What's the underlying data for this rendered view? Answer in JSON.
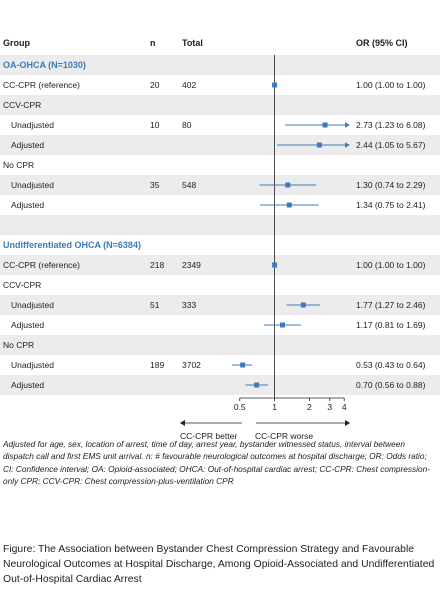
{
  "header": {
    "group": "Group",
    "n": "n",
    "total": "Total",
    "or": "OR (95% CI)"
  },
  "rows": [
    {
      "kind": "section",
      "label": "OA-OHCA (N=1030)",
      "shade": true
    },
    {
      "kind": "data",
      "label": "CC-CPR (reference)",
      "indent": false,
      "n": "20",
      "total": "402",
      "or_text": "1.00 (1.00 to 1.00)",
      "shade": false
    },
    {
      "kind": "group",
      "label": "CCV-CPR",
      "shade": true
    },
    {
      "kind": "data",
      "label": "Unadjusted",
      "indent": true,
      "n": "10",
      "total": "80",
      "or_text": "2.73 (1.23 to 6.08)",
      "shade": false
    },
    {
      "kind": "data",
      "label": "Adjusted",
      "indent": true,
      "n": "",
      "total": "",
      "or_text": "2.44 (1.05 to 5.67)",
      "shade": true
    },
    {
      "kind": "group",
      "label": "No CPR",
      "shade": false
    },
    {
      "kind": "data",
      "label": "Unadjusted",
      "indent": true,
      "n": "35",
      "total": "548",
      "or_text": "1.30 (0.74 to 2.29)",
      "shade": true
    },
    {
      "kind": "data",
      "label": "Adjusted",
      "indent": true,
      "n": "",
      "total": "",
      "or_text": "1.34 (0.75 to 2.41)",
      "shade": false
    },
    {
      "kind": "spacer",
      "label": "",
      "shade": true
    },
    {
      "kind": "section",
      "label": "Undifferentiated OHCA (N=6384)",
      "shade": false
    },
    {
      "kind": "data",
      "label": "CC-CPR (reference)",
      "indent": false,
      "n": "218",
      "total": "2349",
      "or_text": "1.00 (1.00 to 1.00)",
      "shade": true
    },
    {
      "kind": "group",
      "label": "CCV-CPR",
      "shade": false
    },
    {
      "kind": "data",
      "label": "Unadjusted",
      "indent": true,
      "n": "51",
      "total": "333",
      "or_text": "1.77 (1.27 to 2.46)",
      "shade": true
    },
    {
      "kind": "data",
      "label": "Adjusted",
      "indent": true,
      "n": "",
      "total": "",
      "or_text": "1.17 (0.81 to 1.69)",
      "shade": false
    },
    {
      "kind": "group",
      "label": "No CPR",
      "shade": true
    },
    {
      "kind": "data",
      "label": "Unadjusted",
      "indent": true,
      "n": "189",
      "total": "3702",
      "or_text": "0.53 (0.43 to 0.64)",
      "shade": false
    },
    {
      "kind": "data",
      "label": "Adjusted",
      "indent": true,
      "n": "",
      "total": "",
      "or_text": "0.70 (0.56 to 0.88)",
      "shade": true
    }
  ],
  "chart_data": {
    "type": "forest",
    "x_scale": "log",
    "xlim": [
      0.42,
      4.4
    ],
    "xticks": [
      {
        "value": 0.5,
        "label": "0.5"
      },
      {
        "value": 1,
        "label": "1"
      },
      {
        "value": 2,
        "label": "2"
      },
      {
        "value": 3,
        "label": "3"
      },
      {
        "value": 4,
        "label": "4"
      }
    ],
    "reference_line": 1,
    "arrow_cap": 4.4,
    "series": [
      {
        "row": 1,
        "or": 1.0,
        "lo": 1.0,
        "hi": 1.0
      },
      {
        "row": 3,
        "or": 2.73,
        "lo": 1.23,
        "hi": 6.08
      },
      {
        "row": 4,
        "or": 2.44,
        "lo": 1.05,
        "hi": 5.67
      },
      {
        "row": 6,
        "or": 1.3,
        "lo": 0.74,
        "hi": 2.29
      },
      {
        "row": 7,
        "or": 1.34,
        "lo": 0.75,
        "hi": 2.41
      },
      {
        "row": 10,
        "or": 1.0,
        "lo": 1.0,
        "hi": 1.0
      },
      {
        "row": 12,
        "or": 1.77,
        "lo": 1.27,
        "hi": 2.46
      },
      {
        "row": 13,
        "or": 1.17,
        "lo": 0.81,
        "hi": 1.69
      },
      {
        "row": 15,
        "or": 0.53,
        "lo": 0.43,
        "hi": 0.64
      },
      {
        "row": 16,
        "or": 0.7,
        "lo": 0.56,
        "hi": 0.88
      }
    ],
    "direction_left": "CC-CPR better",
    "direction_right": "CC-CPR worse",
    "marker_color": "#3b7bbd"
  },
  "footnote": "Adjusted for age, sex, location of arrest, time of day, arrest year, bystander witnessed status, interval between dispatch call and first EMS unit arrival. n: # favourable neurological outcomes at hospital discharge; OR: Odds ratio; CI: Confidence interval; OA: Opioid-associated; OHCA: Out-of-hospital cardiac arrest; CC-CPR: Chest compression-only CPR; CCV-CPR: Chest compression-plus-ventilation CPR",
  "caption": "Figure: The Association between Bystander Chest Compression Strategy and Favourable Neurological Outcomes at Hospital Discharge, Among Opioid-Associated and Undifferentiated Out-of-Hospital Cardiac Arrest"
}
